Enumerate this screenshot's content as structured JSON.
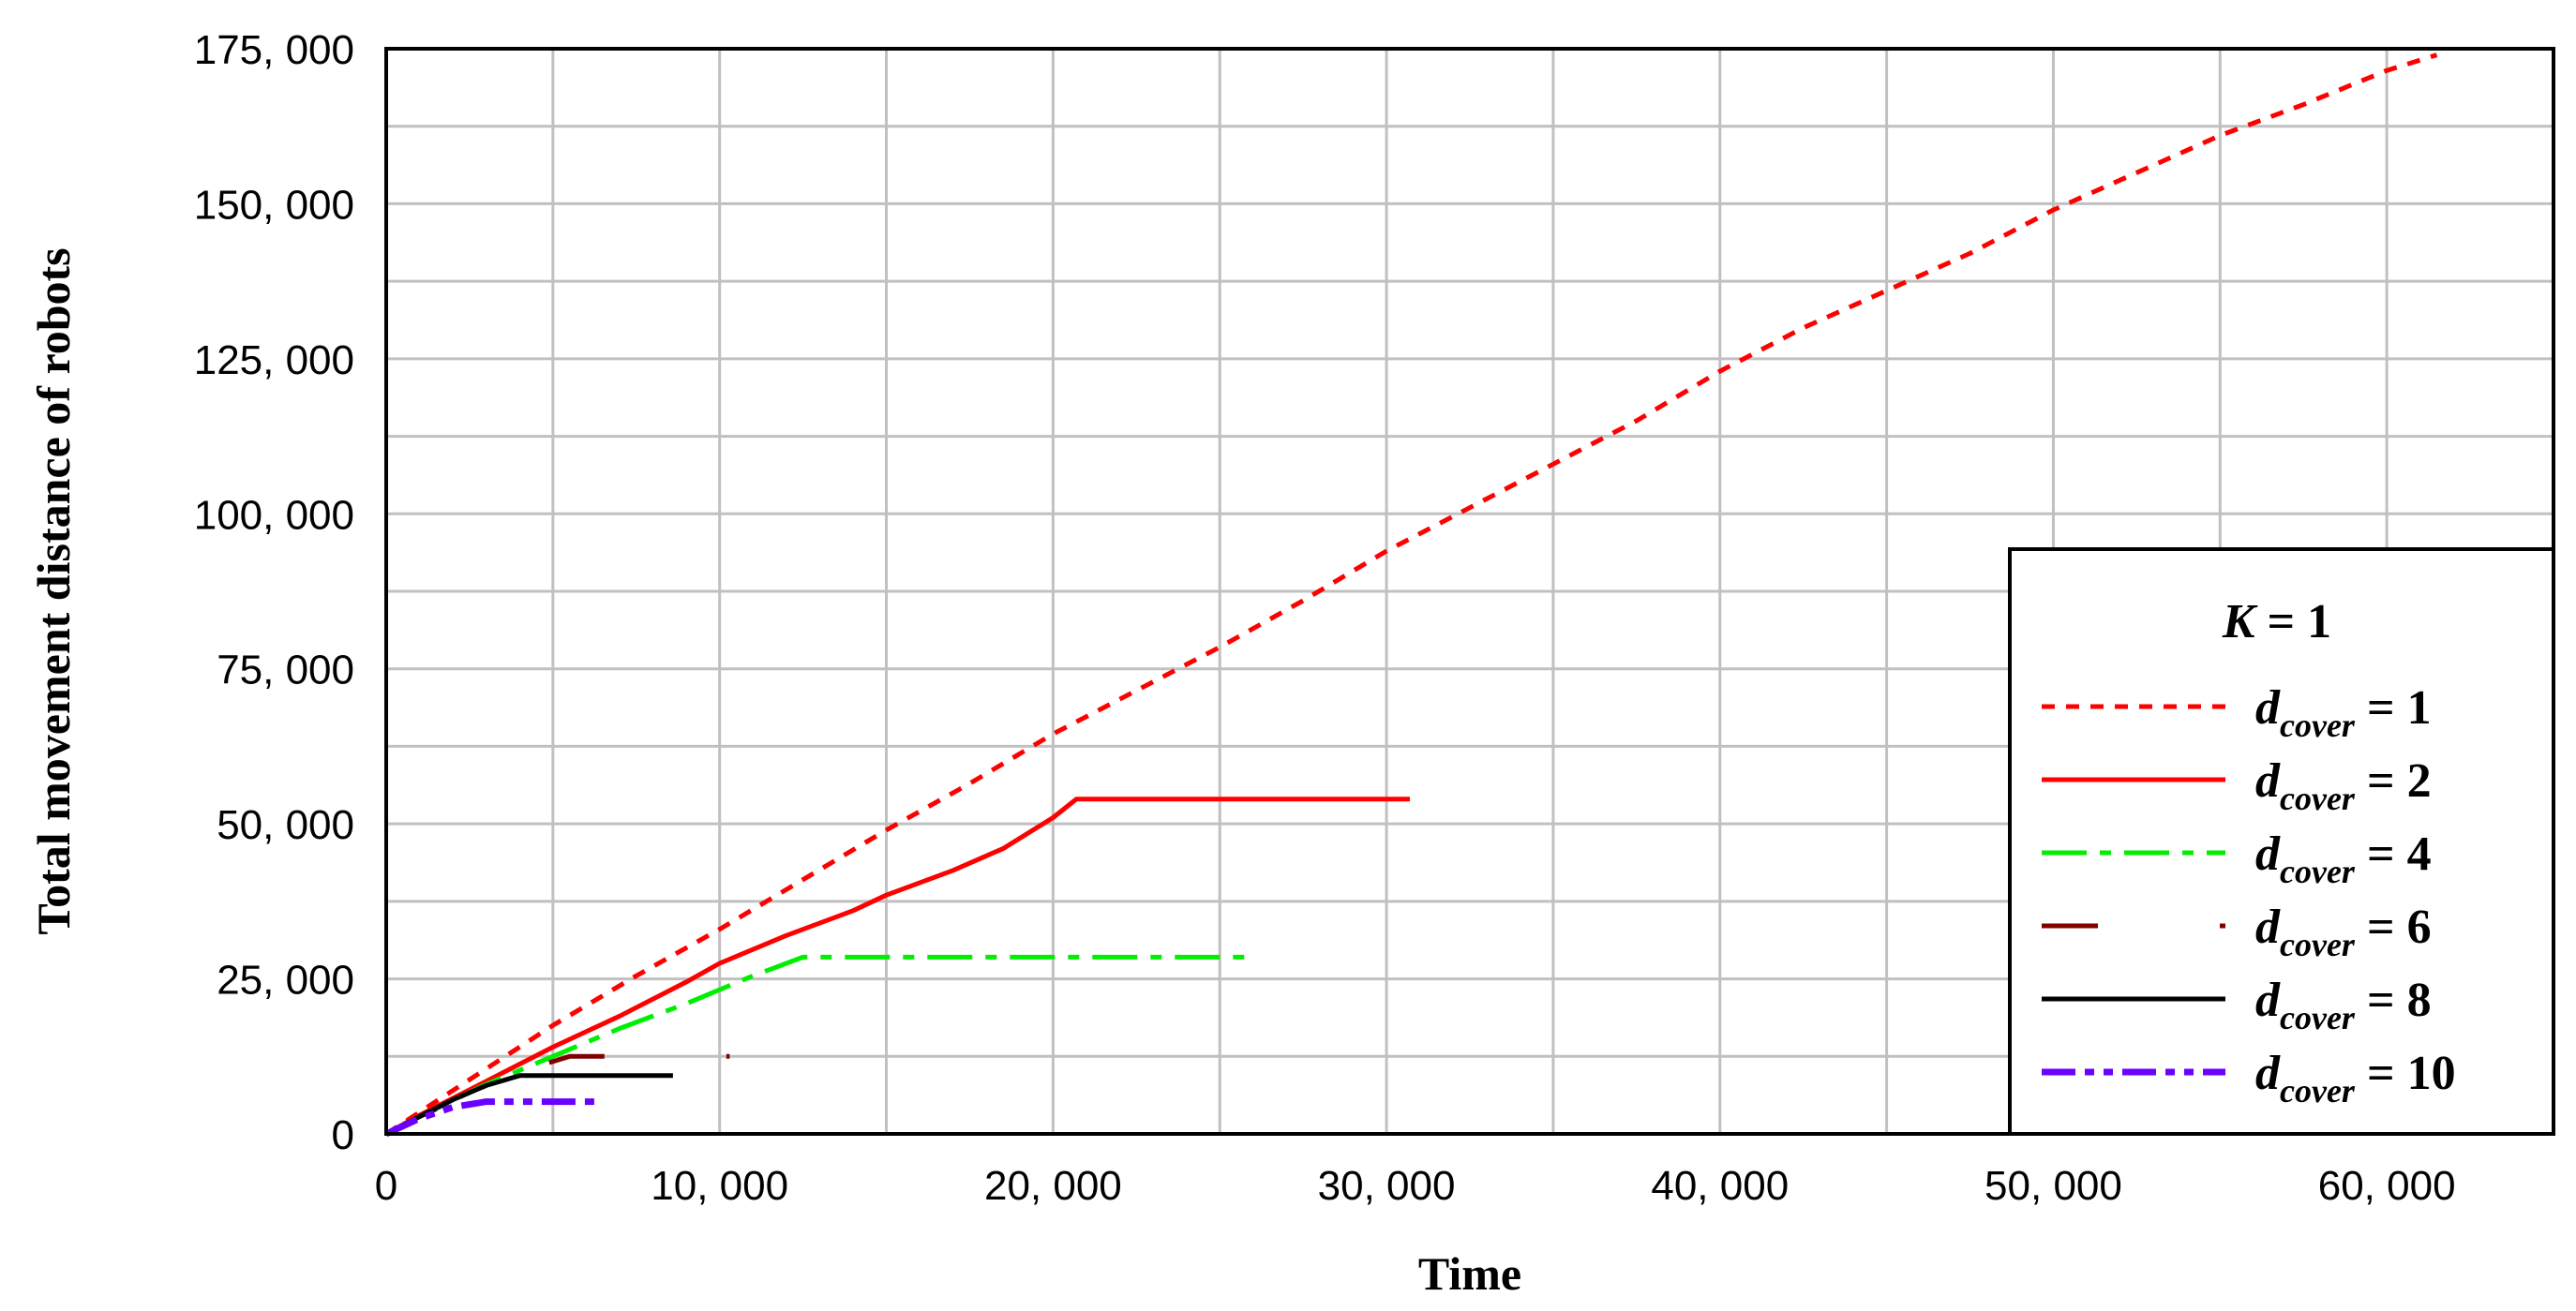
{
  "chart_data": {
    "type": "line",
    "xlabel": "Time",
    "ylabel": "Total movement distance of robots",
    "xlim": [
      0,
      65000
    ],
    "ylim": [
      0,
      175000
    ],
    "x_ticks": [
      0,
      10000,
      20000,
      30000,
      40000,
      50000,
      60000
    ],
    "x_tick_labels": [
      "0",
      "10, 000",
      "20, 000",
      "30, 000",
      "40, 000",
      "50, 000",
      "60, 000"
    ],
    "y_ticks": [
      0,
      25000,
      50000,
      75000,
      100000,
      125000,
      150000,
      175000
    ],
    "y_tick_labels": [
      "0",
      "25, 000",
      "50, 000",
      "75, 000",
      "100, 000",
      "125, 000",
      "150, 000",
      "175, 000"
    ],
    "grid": true,
    "legend_position": "right",
    "legend_title": {
      "italic": "K",
      "rest": " = 1"
    },
    "series": [
      {
        "legend": {
          "main": "d",
          "sub": "cover",
          "rest": " = 1"
        },
        "color": "#ff0000",
        "dash": "dotted",
        "x": [
          0,
          1000,
          3000,
          5000,
          7500,
          10000,
          12500,
          15000,
          17500,
          20000,
          22500,
          25000,
          27500,
          30000,
          32500,
          35000,
          37500,
          40000,
          42500,
          45000,
          47500,
          50000,
          52500,
          55000,
          57500,
          60000,
          61500
        ],
        "y": [
          0,
          3500,
          10500,
          17500,
          25500,
          33000,
          41000,
          49000,
          56500,
          64500,
          71500,
          78500,
          86000,
          94000,
          101000,
          108000,
          115000,
          123000,
          130000,
          136000,
          142000,
          149000,
          155000,
          161000,
          166000,
          171500,
          174000
        ]
      },
      {
        "legend": {
          "main": "d",
          "sub": "cover",
          "rest": " = 2"
        },
        "color": "#ff0000",
        "dash": "solid",
        "x": [
          0,
          1000,
          3000,
          5000,
          7000,
          9000,
          10000,
          12000,
          14000,
          15000,
          17000,
          18500,
          20000,
          20700,
          25000,
          30700
        ],
        "y": [
          0,
          3000,
          8500,
          14000,
          19000,
          24500,
          27500,
          32000,
          36000,
          38500,
          42500,
          46000,
          51000,
          54000,
          54000,
          54000
        ]
      },
      {
        "legend": {
          "main": "d",
          "sub": "cover",
          "rest": " = 4"
        },
        "color": "#00ee00",
        "dash": "dashdot",
        "x": [
          0,
          1000,
          3000,
          5000,
          7000,
          9000,
          11000,
          12500,
          16000,
          20000,
          26000
        ],
        "y": [
          0,
          2800,
          8000,
          12500,
          17000,
          21000,
          25500,
          28500,
          28500,
          28500,
          28500
        ]
      },
      {
        "legend": {
          "main": "d",
          "sub": "cover",
          "rest": " = 6"
        },
        "color": "#800000",
        "dash": "longdash",
        "x": [
          0,
          1000,
          2500,
          4000,
          5500,
          7700,
          10300
        ],
        "y": [
          0,
          2800,
          6500,
          10000,
          12500,
          12500,
          12500
        ]
      },
      {
        "legend": {
          "main": "d",
          "sub": "cover",
          "rest": " = 8"
        },
        "color": "#000000",
        "dash": "solid",
        "x": [
          0,
          1000,
          2000,
          3000,
          4000,
          6000,
          8600
        ],
        "y": [
          0,
          2800,
          5500,
          7800,
          9400,
          9400,
          9400
        ]
      },
      {
        "legend": {
          "main": "d",
          "sub": "cover",
          "rest": " = 10"
        },
        "color": "#6a00ff",
        "dash": "dashdotdot",
        "x": [
          0,
          1000,
          2000,
          3000,
          4000,
          6400
        ],
        "y": [
          0,
          2500,
          4300,
          5200,
          5200,
          5200
        ]
      }
    ]
  }
}
